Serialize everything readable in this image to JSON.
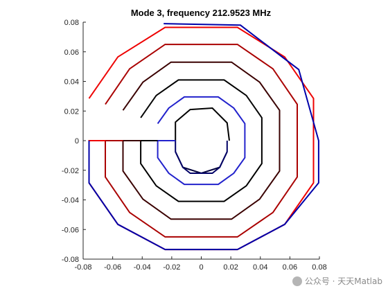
{
  "chart_data": {
    "type": "line",
    "title": "Mode 3, frequency 212.9523 MHz",
    "xlabel": "",
    "ylabel": "",
    "xlim": [
      -0.08,
      0.08
    ],
    "ylim": [
      -0.08,
      0.08
    ],
    "xticks": [
      -0.08,
      -0.06,
      -0.04,
      -0.02,
      0,
      0.02,
      0.04,
      0.06,
      0.08
    ],
    "xtick_labels": [
      "-0.08",
      "-0.06",
      "-0.04",
      "-0.02",
      "0",
      "0.02",
      "0.04",
      "0.06",
      "0.08"
    ],
    "yticks": [
      -0.08,
      -0.06,
      -0.04,
      -0.02,
      0,
      0.02,
      0.04,
      0.06,
      0.08
    ],
    "ytick_labels": [
      "-0.08",
      "-0.06",
      "-0.04",
      "-0.02",
      "0",
      "0.02",
      "0.04",
      "0.06",
      "0.08"
    ],
    "grid": false,
    "legend": "none",
    "series": [
      {
        "color": "#000000",
        "x": [
          0.019,
          0.0175,
          0.0075,
          -0.0075,
          -0.0175,
          -0.0175
        ],
        "y": [
          0.0,
          0.012,
          0.022,
          0.021,
          0.0125,
          0.0
        ]
      },
      {
        "color": "#00003a",
        "x": [
          -0.0175,
          -0.0125,
          0.0,
          0.0125,
          0.0175
        ],
        "y": [
          -0.0075,
          -0.018,
          -0.022,
          -0.018,
          -0.0075
        ]
      },
      {
        "color": "#000066",
        "x": [
          -0.0175,
          -0.0175,
          -0.0125,
          -0.0075,
          0.0075,
          0.0125,
          0.0175,
          0.0175
        ],
        "y": [
          0.0,
          -0.0075,
          -0.018,
          -0.022,
          -0.022,
          -0.018,
          -0.0075,
          0.0
        ]
      },
      {
        "color": "#2222cc",
        "x": [
          -0.0175,
          -0.0295,
          -0.0295,
          -0.022,
          -0.0115,
          0.0115,
          0.022,
          0.0295,
          0.0295,
          0.022,
          0.0115,
          -0.0115,
          -0.022,
          -0.0295
        ],
        "y": [
          0.0,
          0.0,
          -0.0115,
          -0.022,
          -0.0295,
          -0.0295,
          -0.022,
          -0.0115,
          0.0115,
          0.022,
          0.0295,
          0.0295,
          0.022,
          0.0115
        ]
      },
      {
        "color": "#000000",
        "x": [
          -0.0295,
          -0.041,
          -0.041,
          -0.0305,
          -0.0155,
          0.0155,
          0.0305,
          0.041,
          0.041,
          0.0305,
          0.0155,
          -0.0155,
          -0.0305,
          -0.041
        ],
        "y": [
          0.0,
          0.0,
          -0.0155,
          -0.0305,
          -0.041,
          -0.041,
          -0.0305,
          -0.0155,
          0.0155,
          0.0305,
          0.041,
          0.041,
          0.0305,
          0.0155
        ]
      },
      {
        "color": "#3a0000",
        "x": [
          -0.041,
          -0.053,
          -0.053,
          -0.0395,
          -0.0205,
          0.0205,
          0.0395,
          0.053,
          0.053,
          0.0395,
          0.0205,
          -0.0205,
          -0.0395,
          -0.053
        ],
        "y": [
          0.0,
          0.0,
          -0.0205,
          -0.0395,
          -0.053,
          -0.053,
          -0.0395,
          -0.0205,
          0.0205,
          0.0395,
          0.053,
          0.053,
          0.0395,
          0.0205
        ]
      },
      {
        "color": "#aa0000",
        "x": [
          -0.053,
          -0.065,
          -0.065,
          -0.0485,
          -0.0245,
          0.0245,
          0.0485,
          0.065,
          0.065,
          0.0485,
          0.0245,
          -0.0245,
          -0.0485,
          -0.065
        ],
        "y": [
          0.0,
          0.0,
          -0.0245,
          -0.0485,
          -0.065,
          -0.065,
          -0.0485,
          -0.0245,
          0.0245,
          0.0485,
          0.065,
          0.065,
          0.0485,
          0.0245
        ]
      },
      {
        "color": "#ee0000",
        "x": [
          -0.065,
          -0.076,
          -0.076,
          -0.0565,
          -0.0245,
          0.0245,
          0.0565,
          0.076,
          0.076,
          0.0565,
          0.0245,
          -0.0245,
          -0.0565,
          -0.076
        ],
        "y": [
          0.0,
          0.0,
          -0.0285,
          -0.0565,
          -0.0735,
          -0.0735,
          -0.0565,
          -0.0285,
          0.0285,
          0.0565,
          0.0765,
          0.0765,
          0.0565,
          0.0285
        ]
      },
      {
        "color": "#0000aa",
        "x": [
          -0.076,
          -0.076,
          -0.0565,
          -0.0245,
          0.0245,
          0.0565,
          0.0795,
          0.0795,
          0.066,
          0.0265,
          -0.0255
        ],
        "y": [
          0.0,
          -0.0285,
          -0.0565,
          -0.0735,
          -0.0735,
          -0.0565,
          -0.0285,
          0.0,
          0.048,
          0.078,
          0.079
        ]
      }
    ]
  },
  "watermark": {
    "text": "公众号 · 天天Matlab"
  }
}
